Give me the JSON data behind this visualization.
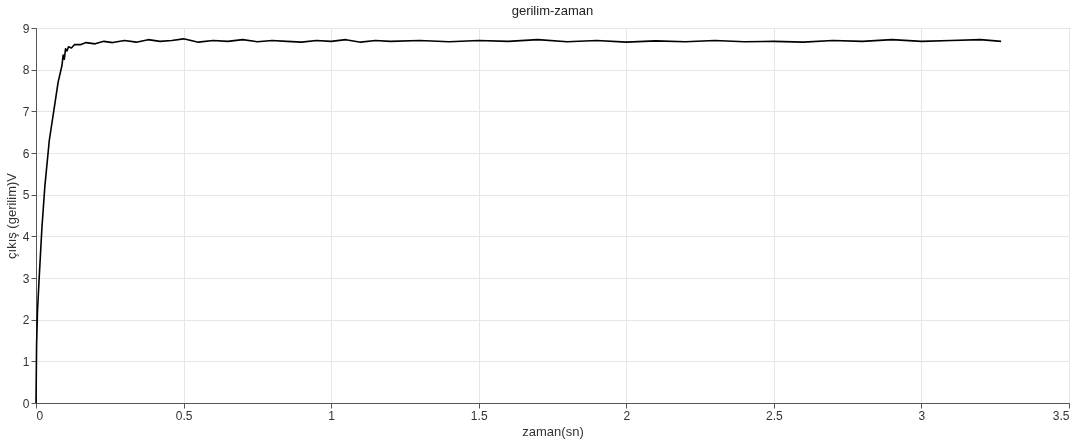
{
  "chart_data": {
    "type": "line",
    "title": "gerilim-zaman",
    "xlabel": "zaman(sn)",
    "ylabel": "çıkış (gerilim)V",
    "x": [
      0,
      0.002,
      0.005,
      0.01,
      0.02,
      0.03,
      0.045,
      0.06,
      0.075,
      0.088,
      0.092,
      0.096,
      0.1,
      0.105,
      0.11,
      0.12,
      0.13,
      0.15,
      0.17,
      0.2,
      0.23,
      0.26,
      0.3,
      0.34,
      0.38,
      0.42,
      0.46,
      0.5,
      0.55,
      0.6,
      0.65,
      0.7,
      0.75,
      0.8,
      0.85,
      0.9,
      0.95,
      1.0,
      1.05,
      1.1,
      1.15,
      1.2,
      1.3,
      1.4,
      1.5,
      1.6,
      1.7,
      1.8,
      1.9,
      2.0,
      2.1,
      2.2,
      2.3,
      2.4,
      2.5,
      2.6,
      2.7,
      2.8,
      2.9,
      3.0,
      3.1,
      3.2,
      3.27
    ],
    "series": [
      {
        "color": "#000000",
        "values": [
          0,
          1.4,
          2.2,
          2.9,
          4.2,
          5.2,
          6.3,
          7.0,
          7.7,
          8.1,
          8.35,
          8.25,
          8.5,
          8.45,
          8.55,
          8.52,
          8.6,
          8.6,
          8.65,
          8.62,
          8.68,
          8.65,
          8.7,
          8.66,
          8.72,
          8.68,
          8.7,
          8.74,
          8.66,
          8.7,
          8.68,
          8.72,
          8.67,
          8.7,
          8.68,
          8.66,
          8.7,
          8.68,
          8.72,
          8.66,
          8.7,
          8.68,
          8.7,
          8.67,
          8.7,
          8.68,
          8.72,
          8.67,
          8.7,
          8.66,
          8.69,
          8.67,
          8.7,
          8.67,
          8.68,
          8.66,
          8.7,
          8.68,
          8.72,
          8.68,
          8.7,
          8.72,
          8.68
        ]
      }
    ],
    "xlim": [
      0,
      3.5
    ],
    "ylim": [
      0,
      9
    ],
    "xticks": [
      0,
      0.5,
      1,
      1.5,
      2,
      2.5,
      3,
      3.5
    ],
    "yticks": [
      0,
      1,
      2,
      3,
      4,
      5,
      6,
      7,
      8,
      9
    ],
    "grid": true,
    "legend": false,
    "marker": "none",
    "line_style": "solid"
  }
}
